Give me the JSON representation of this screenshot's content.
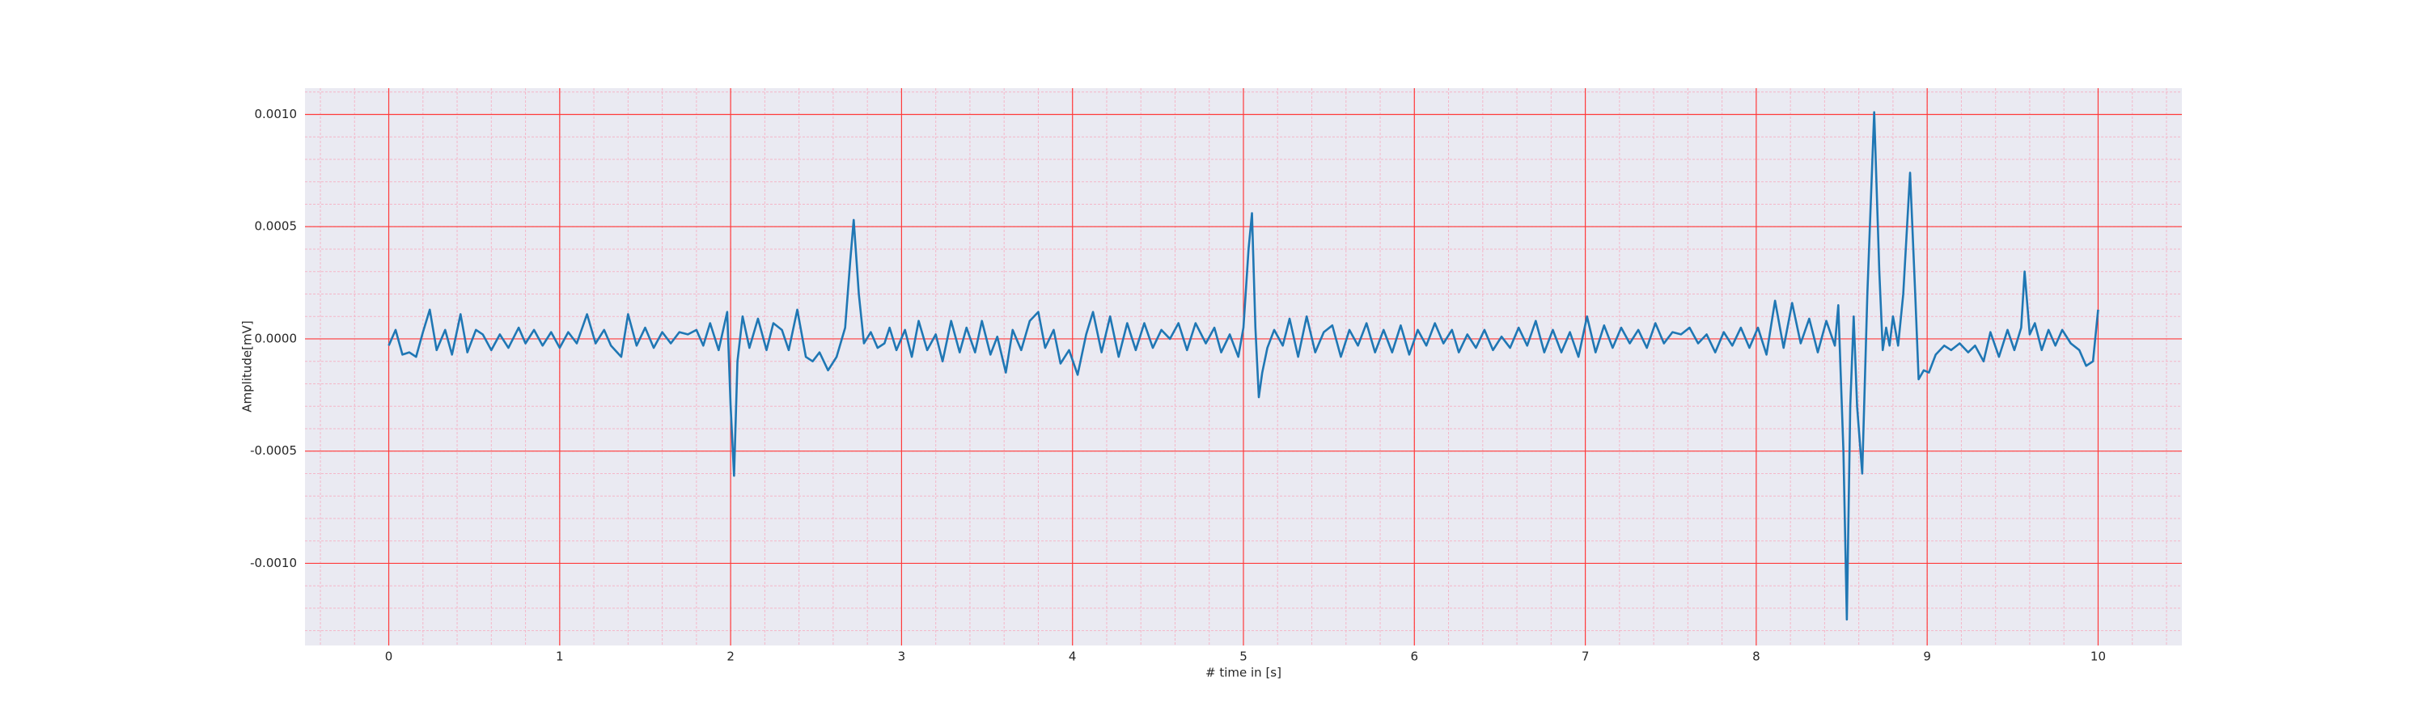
{
  "chart_data": {
    "type": "line",
    "xlabel": "# time in [s]",
    "ylabel": "Amplitude[mV]",
    "xlim": [
      -0.49,
      10.49
    ],
    "ylim": [
      -0.001366,
      0.001117
    ],
    "xticks": [
      0,
      1,
      2,
      3,
      4,
      5,
      6,
      7,
      8,
      9,
      10
    ],
    "yticks": [
      {
        "value": -0.001,
        "label": "-0.0010"
      },
      {
        "value": -0.0005,
        "label": "-0.0005"
      },
      {
        "value": 0,
        "label": "0.0000"
      },
      {
        "value": 0.0005,
        "label": "0.0005"
      },
      {
        "value": 0.001,
        "label": "0.0010"
      }
    ],
    "grid": true,
    "grid_color": "#ff3b3b",
    "minor_grid": {
      "x": 0.2,
      "y": 0.0001,
      "color": "#f4b6c8"
    },
    "background": "#eaeaf2",
    "x": [
      0.0,
      0.04,
      0.08,
      0.12,
      0.16,
      0.2,
      0.24,
      0.28,
      0.33,
      0.37,
      0.42,
      0.46,
      0.51,
      0.55,
      0.6,
      0.65,
      0.7,
      0.76,
      0.8,
      0.85,
      0.9,
      0.95,
      1.0,
      1.05,
      1.1,
      1.16,
      1.21,
      1.26,
      1.3,
      1.36,
      1.4,
      1.45,
      1.5,
      1.55,
      1.6,
      1.65,
      1.7,
      1.75,
      1.8,
      1.84,
      1.88,
      1.93,
      1.98,
      2.0,
      2.02,
      2.04,
      2.07,
      2.11,
      2.16,
      2.21,
      2.25,
      2.3,
      2.34,
      2.39,
      2.44,
      2.48,
      2.52,
      2.57,
      2.62,
      2.67,
      2.7,
      2.72,
      2.75,
      2.78,
      2.82,
      2.86,
      2.9,
      2.93,
      2.97,
      3.02,
      3.06,
      3.1,
      3.15,
      3.2,
      3.24,
      3.29,
      3.34,
      3.38,
      3.43,
      3.47,
      3.52,
      3.56,
      3.61,
      3.65,
      3.7,
      3.75,
      3.8,
      3.84,
      3.89,
      3.93,
      3.98,
      4.03,
      4.08,
      4.12,
      4.17,
      4.22,
      4.27,
      4.32,
      4.37,
      4.42,
      4.47,
      4.52,
      4.57,
      4.62,
      4.67,
      4.72,
      4.78,
      4.83,
      4.87,
      4.92,
      4.97,
      5.0,
      5.03,
      5.05,
      5.07,
      5.09,
      5.11,
      5.14,
      5.18,
      5.23,
      5.27,
      5.32,
      5.37,
      5.42,
      5.47,
      5.52,
      5.57,
      5.62,
      5.67,
      5.72,
      5.77,
      5.82,
      5.87,
      5.92,
      5.97,
      6.02,
      6.07,
      6.12,
      6.17,
      6.22,
      6.26,
      6.31,
      6.36,
      6.41,
      6.46,
      6.51,
      6.56,
      6.61,
      6.66,
      6.71,
      6.76,
      6.81,
      6.86,
      6.91,
      6.96,
      7.01,
      7.06,
      7.11,
      7.16,
      7.21,
      7.26,
      7.31,
      7.36,
      7.41,
      7.46,
      7.51,
      7.56,
      7.61,
      7.66,
      7.71,
      7.76,
      7.81,
      7.86,
      7.91,
      7.96,
      8.01,
      8.06,
      8.11,
      8.16,
      8.21,
      8.26,
      8.31,
      8.36,
      8.41,
      8.46,
      8.48,
      8.51,
      8.53,
      8.55,
      8.57,
      8.59,
      8.62,
      8.65,
      8.69,
      8.72,
      8.74,
      8.76,
      8.78,
      8.8,
      8.83,
      8.86,
      8.9,
      8.93,
      8.95,
      8.98,
      9.01,
      9.05,
      9.1,
      9.14,
      9.19,
      9.24,
      9.28,
      9.33,
      9.37,
      9.42,
      9.47,
      9.51,
      9.55,
      9.57,
      9.6,
      9.63,
      9.67,
      9.71,
      9.75,
      9.79,
      9.84,
      9.89,
      9.93,
      9.97,
      10.0
    ],
    "series": [
      {
        "color": "#1f77b4",
        "values": [
          -3e-05,
          4e-05,
          -7e-05,
          -6e-05,
          -8e-05,
          3e-05,
          0.00013,
          -5e-05,
          4e-05,
          -7e-05,
          0.00011,
          -6e-05,
          4e-05,
          2e-05,
          -5e-05,
          2e-05,
          -4e-05,
          5e-05,
          -2e-05,
          4e-05,
          -3e-05,
          3e-05,
          -4e-05,
          3e-05,
          -2e-05,
          0.00011,
          -2e-05,
          4e-05,
          -3e-05,
          -8e-05,
          0.00011,
          -3e-05,
          5e-05,
          -4e-05,
          3e-05,
          -2e-05,
          3e-05,
          2e-05,
          4e-05,
          -3e-05,
          7e-05,
          -5e-05,
          0.00012,
          -0.0003,
          -0.00061,
          -0.0001,
          0.0001,
          -4e-05,
          9e-05,
          -5e-05,
          7e-05,
          4e-05,
          -5e-05,
          0.00013,
          -8e-05,
          -0.0001,
          -6e-05,
          -0.00014,
          -8e-05,
          5e-05,
          0.00035,
          0.00053,
          0.0002,
          -2e-05,
          3e-05,
          -4e-05,
          -2e-05,
          5e-05,
          -5e-05,
          4e-05,
          -8e-05,
          8e-05,
          -5e-05,
          2e-05,
          -0.0001,
          8e-05,
          -6e-05,
          5e-05,
          -6e-05,
          8e-05,
          -7e-05,
          1e-05,
          -0.00015,
          4e-05,
          -5e-05,
          8e-05,
          0.00012,
          -4e-05,
          4e-05,
          -0.00011,
          -5e-05,
          -0.00016,
          2e-05,
          0.00012,
          -6e-05,
          0.0001,
          -8e-05,
          7e-05,
          -5e-05,
          7e-05,
          -4e-05,
          4e-05,
          0,
          7e-05,
          -5e-05,
          7e-05,
          -2e-05,
          5e-05,
          -6e-05,
          2e-05,
          -8e-05,
          5e-05,
          0.0004,
          0.00056,
          5e-05,
          -0.00026,
          -0.00015,
          -4e-05,
          4e-05,
          -3e-05,
          9e-05,
          -8e-05,
          0.0001,
          -6e-05,
          3e-05,
          6e-05,
          -8e-05,
          4e-05,
          -3e-05,
          7e-05,
          -6e-05,
          4e-05,
          -6e-05,
          6e-05,
          -7e-05,
          4e-05,
          -3e-05,
          7e-05,
          -2e-05,
          4e-05,
          -6e-05,
          2e-05,
          -4e-05,
          4e-05,
          -5e-05,
          1e-05,
          -4e-05,
          5e-05,
          -3e-05,
          8e-05,
          -6e-05,
          4e-05,
          -6e-05,
          3e-05,
          -8e-05,
          0.0001,
          -6e-05,
          6e-05,
          -4e-05,
          5e-05,
          -2e-05,
          4e-05,
          -4e-05,
          7e-05,
          -2e-05,
          3e-05,
          2e-05,
          5e-05,
          -2e-05,
          2e-05,
          -6e-05,
          3e-05,
          -3e-05,
          5e-05,
          -4e-05,
          5e-05,
          -7e-05,
          0.00017,
          -4e-05,
          0.00016,
          -2e-05,
          9e-05,
          -6e-05,
          8e-05,
          -3e-05,
          0.00015,
          -0.0005,
          -0.00125,
          -0.0003,
          0.0001,
          -0.0003,
          -0.0006,
          0.0002,
          0.00101,
          0.0003,
          -5e-05,
          5e-05,
          -3e-05,
          0.0001,
          -3e-05,
          0.0002,
          0.00074,
          0.0002,
          -0.00018,
          -0.00014,
          -0.00015,
          -7e-05,
          -3e-05,
          -5e-05,
          -2e-05,
          -6e-05,
          -3e-05,
          -0.0001,
          3e-05,
          -8e-05,
          4e-05,
          -5e-05,
          5e-05,
          0.0003,
          2e-05,
          7e-05,
          -5e-05,
          4e-05,
          -3e-05,
          4e-05,
          -2e-05,
          -5e-05,
          -0.00012,
          -0.0001,
          0.00013
        ]
      }
    ]
  }
}
